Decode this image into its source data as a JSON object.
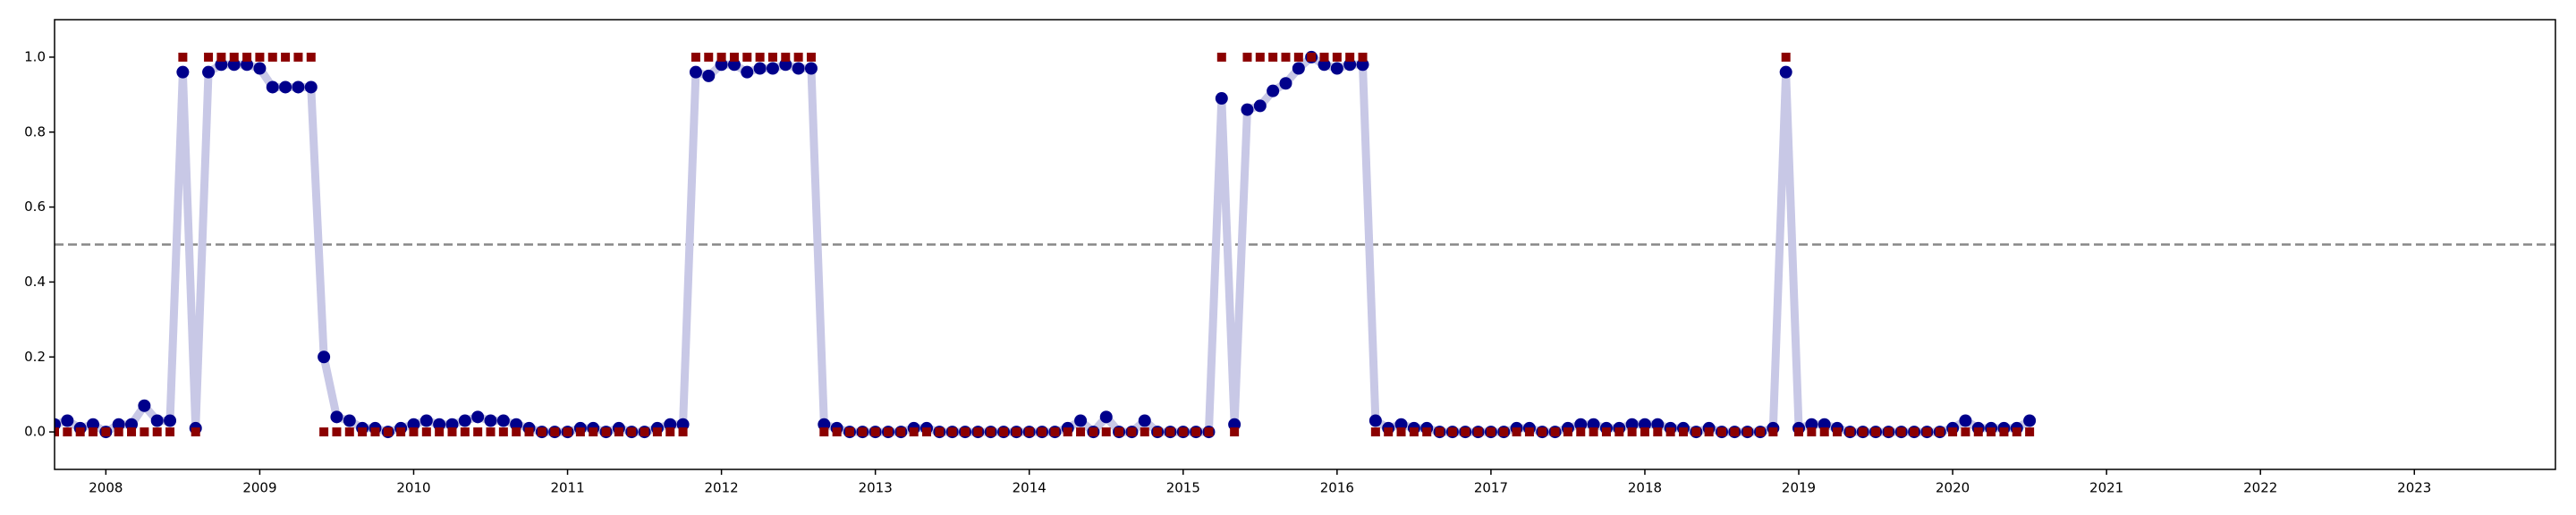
{
  "chart_data": {
    "type": "line",
    "x": [
      "2007-09",
      "2007-10",
      "2007-11",
      "2007-12",
      "2008-01",
      "2008-02",
      "2008-03",
      "2008-04",
      "2008-05",
      "2008-06",
      "2008-07",
      "2008-08",
      "2008-09",
      "2008-10",
      "2008-11",
      "2008-12",
      "2009-01",
      "2009-02",
      "2009-03",
      "2009-04",
      "2009-05",
      "2009-06",
      "2009-07",
      "2009-08",
      "2009-09",
      "2009-10",
      "2009-11",
      "2009-12",
      "2010-01",
      "2010-02",
      "2010-03",
      "2010-04",
      "2010-05",
      "2010-06",
      "2010-07",
      "2010-08",
      "2010-09",
      "2010-10",
      "2010-11",
      "2010-12",
      "2011-01",
      "2011-02",
      "2011-03",
      "2011-04",
      "2011-05",
      "2011-06",
      "2011-07",
      "2011-08",
      "2011-09",
      "2011-10",
      "2011-11",
      "2011-12",
      "2012-01",
      "2012-02",
      "2012-03",
      "2012-04",
      "2012-05",
      "2012-06",
      "2012-07",
      "2012-08",
      "2012-09",
      "2012-10",
      "2012-11",
      "2012-12",
      "2013-01",
      "2013-02",
      "2013-03",
      "2013-04",
      "2013-05",
      "2013-06",
      "2013-07",
      "2013-08",
      "2013-09",
      "2013-10",
      "2013-11",
      "2013-12",
      "2014-01",
      "2014-02",
      "2014-03",
      "2014-04",
      "2014-05",
      "2014-06",
      "2014-07",
      "2014-08",
      "2014-09",
      "2014-10",
      "2014-11",
      "2014-12",
      "2015-01",
      "2015-02",
      "2015-03",
      "2015-04",
      "2015-05",
      "2015-06",
      "2015-07",
      "2015-08",
      "2015-09",
      "2015-10",
      "2015-11",
      "2015-12",
      "2016-01",
      "2016-02",
      "2016-03",
      "2016-04",
      "2016-05",
      "2016-06",
      "2016-07",
      "2016-08",
      "2016-09",
      "2016-10",
      "2016-11",
      "2016-12",
      "2017-01",
      "2017-02",
      "2017-03",
      "2017-04",
      "2017-05",
      "2017-06",
      "2017-07",
      "2017-08",
      "2017-09",
      "2017-10",
      "2017-11",
      "2017-12",
      "2018-01",
      "2018-02",
      "2018-03",
      "2018-04",
      "2018-05",
      "2018-06",
      "2018-07",
      "2018-08",
      "2018-09",
      "2018-10",
      "2018-11",
      "2018-12",
      "2019-01",
      "2019-02",
      "2019-03",
      "2019-04",
      "2019-05",
      "2019-06",
      "2019-07",
      "2019-08",
      "2019-09",
      "2019-10",
      "2019-11",
      "2019-12",
      "2020-01",
      "2020-02",
      "2020-03",
      "2020-04",
      "2020-05",
      "2020-06",
      "2020-07"
    ],
    "series": [
      {
        "color": "#00008b",
        "line_color": "#c8c8e6",
        "marker": "circle",
        "values": [
          0.02,
          0.03,
          0.01,
          0.02,
          0.0,
          0.02,
          0.02,
          0.07,
          0.03,
          0.03,
          0.96,
          0.01,
          0.96,
          0.98,
          0.98,
          0.98,
          0.97,
          0.92,
          0.92,
          0.92,
          0.92,
          0.2,
          0.04,
          0.03,
          0.01,
          0.01,
          0.0,
          0.01,
          0.02,
          0.03,
          0.02,
          0.02,
          0.03,
          0.04,
          0.03,
          0.03,
          0.02,
          0.01,
          0.0,
          0.0,
          0.0,
          0.01,
          0.01,
          0.0,
          0.01,
          0.0,
          0.0,
          0.01,
          0.02,
          0.02,
          0.96,
          0.95,
          0.98,
          0.98,
          0.96,
          0.97,
          0.97,
          0.98,
          0.97,
          0.97,
          0.02,
          0.01,
          0.0,
          0.0,
          0.0,
          0.0,
          0.0,
          0.01,
          0.01,
          0.0,
          0.0,
          0.0,
          0.0,
          0.0,
          0.0,
          0.0,
          0.0,
          0.0,
          0.0,
          0.01,
          0.03,
          0.0,
          0.04,
          0.0,
          0.0,
          0.03,
          0.0,
          0.0,
          0.0,
          0.0,
          0.0,
          0.89,
          0.02,
          0.86,
          0.87,
          0.91,
          0.93,
          0.97,
          1.0,
          0.98,
          0.97,
          0.98,
          0.98,
          0.03,
          0.01,
          0.02,
          0.01,
          0.01,
          0.0,
          0.0,
          0.0,
          0.0,
          0.0,
          0.0,
          0.01,
          0.01,
          0.0,
          0.0,
          0.01,
          0.02,
          0.02,
          0.01,
          0.01,
          0.02,
          0.02,
          0.02,
          0.01,
          0.01,
          0.0,
          0.01,
          0.0,
          0.0,
          0.0,
          0.0,
          0.01,
          0.96,
          0.01,
          0.02,
          0.02,
          0.01,
          0.0,
          0.0,
          0.0,
          0.0,
          0.0,
          0.0,
          0.0,
          0.0,
          0.01,
          0.03,
          0.01,
          0.01,
          0.01,
          0.01,
          0.03
        ]
      },
      {
        "color": "#8b0000",
        "marker": "square",
        "values": [
          0,
          0,
          0,
          0,
          0,
          0,
          0,
          0,
          0,
          0,
          1,
          0,
          1,
          1,
          1,
          1,
          1,
          1,
          1,
          1,
          1,
          0,
          0,
          0,
          0,
          0,
          0,
          0,
          0,
          0,
          0,
          0,
          0,
          0,
          0,
          0,
          0,
          0,
          0,
          0,
          0,
          0,
          0,
          0,
          0,
          0,
          0,
          0,
          0,
          0,
          1,
          1,
          1,
          1,
          1,
          1,
          1,
          1,
          1,
          1,
          0,
          0,
          0,
          0,
          0,
          0,
          0,
          0,
          0,
          0,
          0,
          0,
          0,
          0,
          0,
          0,
          0,
          0,
          0,
          0,
          0,
          0,
          0,
          0,
          0,
          0,
          0,
          0,
          0,
          0,
          0,
          1,
          0,
          1,
          1,
          1,
          1,
          1,
          1,
          1,
          1,
          1,
          1,
          0,
          0,
          0,
          0,
          0,
          0,
          0,
          0,
          0,
          0,
          0,
          0,
          0,
          0,
          0,
          0,
          0,
          0,
          0,
          0,
          0,
          0,
          0,
          0,
          0,
          0,
          0,
          0,
          0,
          0,
          0,
          0,
          1,
          0,
          0,
          0,
          0,
          0,
          0,
          0,
          0,
          0,
          0,
          0,
          0,
          0,
          0,
          0,
          0,
          0,
          0,
          0
        ]
      }
    ],
    "xlim": [
      "2007-09",
      "2023-12"
    ],
    "xticks": [
      {
        "value": "2008-01",
        "label": "2008"
      },
      {
        "value": "2009-01",
        "label": "2009"
      },
      {
        "value": "2010-01",
        "label": "2010"
      },
      {
        "value": "2011-01",
        "label": "2011"
      },
      {
        "value": "2012-01",
        "label": "2012"
      },
      {
        "value": "2013-01",
        "label": "2013"
      },
      {
        "value": "2014-01",
        "label": "2014"
      },
      {
        "value": "2015-01",
        "label": "2015"
      },
      {
        "value": "2016-01",
        "label": "2016"
      },
      {
        "value": "2017-01",
        "label": "2017"
      },
      {
        "value": "2018-01",
        "label": "2018"
      },
      {
        "value": "2019-01",
        "label": "2019"
      },
      {
        "value": "2020-01",
        "label": "2020"
      },
      {
        "value": "2021-01",
        "label": "2021"
      },
      {
        "value": "2022-01",
        "label": "2022"
      },
      {
        "value": "2023-01",
        "label": "2023"
      }
    ],
    "ylim": [
      -0.1,
      1.1
    ],
    "yticks": [
      {
        "value": 0,
        "label": "0.0"
      },
      0.2,
      0.4,
      0.6,
      0.8,
      {
        "value": 1,
        "label": "1.0"
      }
    ],
    "hline": 0.5,
    "hline_color": "#888888"
  }
}
